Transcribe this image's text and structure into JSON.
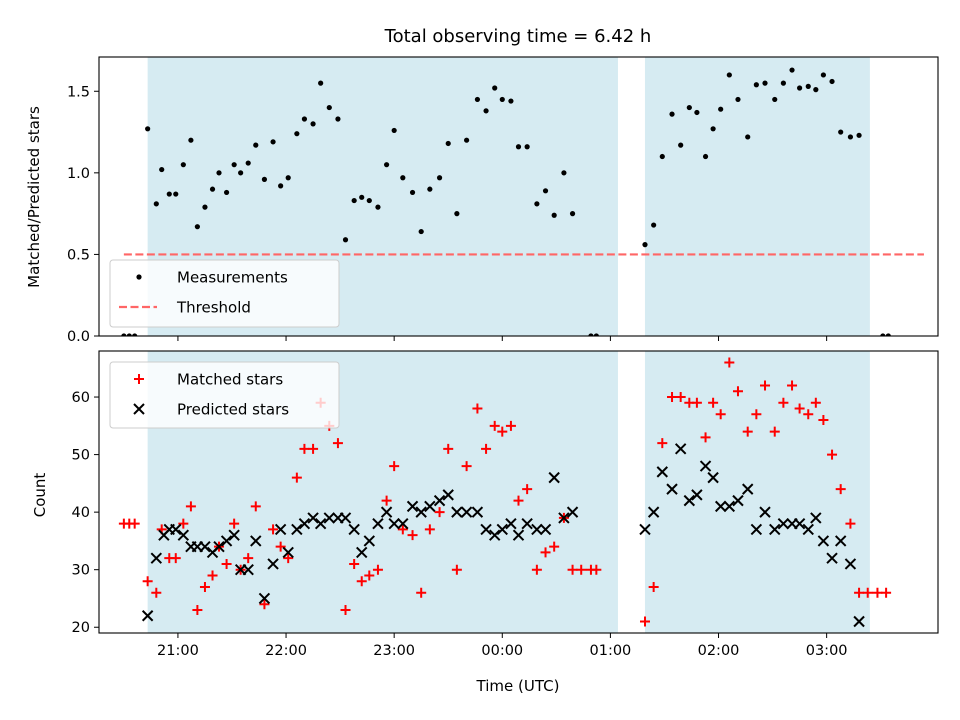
{
  "chart_data": [
    {
      "type": "scatter",
      "title": "Total observing time = 6.42 h",
      "ylabel": "Matched/Predicted stars",
      "xlabel": "",
      "x_unit": "hours UTC, continuing past midnight as 24+",
      "xlim": [
        20.27,
        28.03
      ],
      "ylim": [
        0,
        1.71
      ],
      "yticks": [
        0.0,
        0.5,
        1.0,
        1.5
      ],
      "ytick_labels": [
        "0.0",
        "0.5",
        "1.0",
        "1.5"
      ],
      "observing_windows": [
        [
          20.72,
          25.07
        ],
        [
          25.32,
          27.4
        ]
      ],
      "threshold": {
        "name": "Threshold",
        "value": 0.5,
        "x_range": [
          20.5,
          27.9
        ],
        "color": "#ff6666"
      },
      "legend": {
        "placement": "lower-left",
        "entries": [
          "Measurements",
          "Threshold"
        ]
      },
      "series": [
        {
          "name": "Measurements",
          "marker": "dot",
          "color": "#000000",
          "points": [
            [
              20.5,
              0
            ],
            [
              20.55,
              0
            ],
            [
              20.6,
              0
            ],
            [
              20.72,
              1.27
            ],
            [
              20.8,
              0.81
            ],
            [
              20.85,
              1.02
            ],
            [
              20.92,
              0.87
            ],
            [
              20.98,
              0.87
            ],
            [
              21.05,
              1.05
            ],
            [
              21.12,
              1.2
            ],
            [
              21.18,
              0.67
            ],
            [
              21.25,
              0.79
            ],
            [
              21.32,
              0.9
            ],
            [
              21.38,
              1.0
            ],
            [
              21.45,
              0.88
            ],
            [
              21.52,
              1.05
            ],
            [
              21.58,
              1.0
            ],
            [
              21.65,
              1.06
            ],
            [
              21.72,
              1.17
            ],
            [
              21.8,
              0.96
            ],
            [
              21.88,
              1.19
            ],
            [
              21.95,
              0.92
            ],
            [
              22.02,
              0.97
            ],
            [
              22.1,
              1.24
            ],
            [
              22.17,
              1.33
            ],
            [
              22.25,
              1.3
            ],
            [
              22.32,
              1.55
            ],
            [
              22.4,
              1.4
            ],
            [
              22.48,
              1.33
            ],
            [
              22.55,
              0.59
            ],
            [
              22.63,
              0.83
            ],
            [
              22.7,
              0.85
            ],
            [
              22.77,
              0.83
            ],
            [
              22.85,
              0.79
            ],
            [
              22.93,
              1.05
            ],
            [
              23.0,
              1.26
            ],
            [
              23.08,
              0.97
            ],
            [
              23.17,
              0.88
            ],
            [
              23.25,
              0.64
            ],
            [
              23.33,
              0.9
            ],
            [
              23.42,
              0.97
            ],
            [
              23.5,
              1.18
            ],
            [
              23.58,
              0.75
            ],
            [
              23.67,
              1.2
            ],
            [
              23.77,
              1.45
            ],
            [
              23.85,
              1.38
            ],
            [
              23.93,
              1.52
            ],
            [
              24.0,
              1.45
            ],
            [
              24.08,
              1.44
            ],
            [
              24.15,
              1.16
            ],
            [
              24.23,
              1.16
            ],
            [
              24.32,
              0.81
            ],
            [
              24.4,
              0.89
            ],
            [
              24.48,
              0.74
            ],
            [
              24.57,
              1.0
            ],
            [
              24.65,
              0.75
            ],
            [
              24.82,
              0
            ],
            [
              24.87,
              0
            ],
            [
              25.32,
              0.56
            ],
            [
              25.4,
              0.68
            ],
            [
              25.48,
              1.1
            ],
            [
              25.57,
              1.36
            ],
            [
              25.65,
              1.17
            ],
            [
              25.73,
              1.4
            ],
            [
              25.8,
              1.37
            ],
            [
              25.88,
              1.1
            ],
            [
              25.95,
              1.27
            ],
            [
              26.02,
              1.39
            ],
            [
              26.1,
              1.6
            ],
            [
              26.18,
              1.45
            ],
            [
              26.27,
              1.22
            ],
            [
              26.35,
              1.54
            ],
            [
              26.43,
              1.55
            ],
            [
              26.52,
              1.45
            ],
            [
              26.6,
              1.55
            ],
            [
              26.68,
              1.63
            ],
            [
              26.75,
              1.52
            ],
            [
              26.83,
              1.53
            ],
            [
              26.9,
              1.51
            ],
            [
              26.97,
              1.6
            ],
            [
              27.05,
              1.56
            ],
            [
              27.13,
              1.25
            ],
            [
              27.22,
              1.22
            ],
            [
              27.3,
              1.23
            ],
            [
              27.52,
              0
            ],
            [
              27.57,
              0
            ]
          ]
        }
      ]
    },
    {
      "type": "scatter",
      "title": "",
      "xlabel": "Time (UTC)",
      "ylabel": "Count",
      "x_unit": "hours UTC, continuing past midnight as 24+",
      "xlim": [
        20.27,
        28.03
      ],
      "ylim": [
        19,
        68
      ],
      "xticks": [
        21,
        22,
        23,
        24,
        25,
        26,
        27
      ],
      "xtick_labels": [
        "21:00",
        "22:00",
        "23:00",
        "00:00",
        "01:00",
        "02:00",
        "03:00"
      ],
      "yticks": [
        20,
        30,
        40,
        50,
        60
      ],
      "ytick_labels": [
        "20",
        "30",
        "40",
        "50",
        "60"
      ],
      "observing_windows": [
        [
          20.72,
          25.07
        ],
        [
          25.32,
          27.4
        ]
      ],
      "legend": {
        "placement": "upper-left",
        "entries": [
          "Matched stars",
          "Predicted stars"
        ]
      },
      "series": [
        {
          "name": "Matched stars",
          "marker": "plus",
          "color": "#ff0000",
          "points": [
            [
              20.5,
              38
            ],
            [
              20.55,
              38
            ],
            [
              20.6,
              38
            ],
            [
              20.72,
              28
            ],
            [
              20.8,
              26
            ],
            [
              20.85,
              37
            ],
            [
              20.92,
              32
            ],
            [
              20.98,
              32
            ],
            [
              21.05,
              38
            ],
            [
              21.12,
              41
            ],
            [
              21.18,
              23
            ],
            [
              21.25,
              27
            ],
            [
              21.32,
              29
            ],
            [
              21.38,
              34
            ],
            [
              21.45,
              31
            ],
            [
              21.52,
              38
            ],
            [
              21.58,
              30
            ],
            [
              21.65,
              32
            ],
            [
              21.72,
              41
            ],
            [
              21.8,
              24
            ],
            [
              21.88,
              37
            ],
            [
              21.95,
              34
            ],
            [
              22.02,
              32
            ],
            [
              22.1,
              46
            ],
            [
              22.17,
              51
            ],
            [
              22.25,
              51
            ],
            [
              22.32,
              59
            ],
            [
              22.4,
              55
            ],
            [
              22.48,
              52
            ],
            [
              22.55,
              23
            ],
            [
              22.63,
              31
            ],
            [
              22.7,
              28
            ],
            [
              22.77,
              29
            ],
            [
              22.85,
              30
            ],
            [
              22.93,
              42
            ],
            [
              23.0,
              48
            ],
            [
              23.08,
              37
            ],
            [
              23.17,
              36
            ],
            [
              23.25,
              26
            ],
            [
              23.33,
              37
            ],
            [
              23.42,
              40
            ],
            [
              23.5,
              51
            ],
            [
              23.58,
              30
            ],
            [
              23.67,
              48
            ],
            [
              23.77,
              58
            ],
            [
              23.85,
              51
            ],
            [
              23.93,
              55
            ],
            [
              24.0,
              54
            ],
            [
              24.08,
              55
            ],
            [
              24.15,
              42
            ],
            [
              24.23,
              44
            ],
            [
              24.32,
              30
            ],
            [
              24.4,
              33
            ],
            [
              24.48,
              34
            ],
            [
              24.57,
              39
            ],
            [
              24.65,
              30
            ],
            [
              24.73,
              30
            ],
            [
              24.82,
              30
            ],
            [
              24.87,
              30
            ],
            [
              25.32,
              21
            ],
            [
              25.4,
              27
            ],
            [
              25.48,
              52
            ],
            [
              25.57,
              60
            ],
            [
              25.65,
              60
            ],
            [
              25.73,
              59
            ],
            [
              25.8,
              59
            ],
            [
              25.88,
              53
            ],
            [
              25.95,
              59
            ],
            [
              26.02,
              57
            ],
            [
              26.1,
              66
            ],
            [
              26.18,
              61
            ],
            [
              26.27,
              54
            ],
            [
              26.35,
              57
            ],
            [
              26.43,
              62
            ],
            [
              26.52,
              54
            ],
            [
              26.6,
              59
            ],
            [
              26.68,
              62
            ],
            [
              26.75,
              58
            ],
            [
              26.83,
              57
            ],
            [
              26.9,
              59
            ],
            [
              26.97,
              56
            ],
            [
              27.05,
              50
            ],
            [
              27.13,
              44
            ],
            [
              27.22,
              38
            ],
            [
              27.3,
              26
            ],
            [
              27.38,
              26
            ],
            [
              27.47,
              26
            ],
            [
              27.55,
              26
            ]
          ]
        },
        {
          "name": "Predicted stars",
          "marker": "x",
          "color": "#000000",
          "points": [
            [
              20.72,
              22
            ],
            [
              20.8,
              32
            ],
            [
              20.87,
              36
            ],
            [
              20.92,
              37
            ],
            [
              20.98,
              37
            ],
            [
              21.05,
              36
            ],
            [
              21.12,
              34
            ],
            [
              21.18,
              34
            ],
            [
              21.25,
              34
            ],
            [
              21.32,
              33
            ],
            [
              21.38,
              34
            ],
            [
              21.45,
              35
            ],
            [
              21.52,
              36
            ],
            [
              21.58,
              30
            ],
            [
              21.65,
              30
            ],
            [
              21.72,
              35
            ],
            [
              21.8,
              25
            ],
            [
              21.88,
              31
            ],
            [
              21.95,
              37
            ],
            [
              22.02,
              33
            ],
            [
              22.1,
              37
            ],
            [
              22.17,
              38
            ],
            [
              22.25,
              39
            ],
            [
              22.32,
              38
            ],
            [
              22.4,
              39
            ],
            [
              22.48,
              39
            ],
            [
              22.55,
              39
            ],
            [
              22.63,
              37
            ],
            [
              22.7,
              33
            ],
            [
              22.77,
              35
            ],
            [
              22.85,
              38
            ],
            [
              22.93,
              40
            ],
            [
              23.0,
              38
            ],
            [
              23.08,
              38
            ],
            [
              23.17,
              41
            ],
            [
              23.25,
              40
            ],
            [
              23.33,
              41
            ],
            [
              23.42,
              42
            ],
            [
              23.5,
              43
            ],
            [
              23.58,
              40
            ],
            [
              23.67,
              40
            ],
            [
              23.77,
              40
            ],
            [
              23.85,
              37
            ],
            [
              23.93,
              36
            ],
            [
              24.0,
              37
            ],
            [
              24.08,
              38
            ],
            [
              24.15,
              36
            ],
            [
              24.23,
              38
            ],
            [
              24.32,
              37
            ],
            [
              24.4,
              37
            ],
            [
              24.48,
              46
            ],
            [
              24.57,
              39
            ],
            [
              24.65,
              40
            ],
            [
              25.32,
              37
            ],
            [
              25.4,
              40
            ],
            [
              25.48,
              47
            ],
            [
              25.57,
              44
            ],
            [
              25.65,
              51
            ],
            [
              25.73,
              42
            ],
            [
              25.8,
              43
            ],
            [
              25.88,
              48
            ],
            [
              25.95,
              46
            ],
            [
              26.02,
              41
            ],
            [
              26.1,
              41
            ],
            [
              26.18,
              42
            ],
            [
              26.27,
              44
            ],
            [
              26.35,
              37
            ],
            [
              26.43,
              40
            ],
            [
              26.52,
              37
            ],
            [
              26.6,
              38
            ],
            [
              26.68,
              38
            ],
            [
              26.75,
              38
            ],
            [
              26.83,
              37
            ],
            [
              26.9,
              39
            ],
            [
              26.97,
              35
            ],
            [
              27.05,
              32
            ],
            [
              27.13,
              35
            ],
            [
              27.22,
              31
            ],
            [
              27.3,
              21
            ]
          ]
        }
      ]
    }
  ]
}
